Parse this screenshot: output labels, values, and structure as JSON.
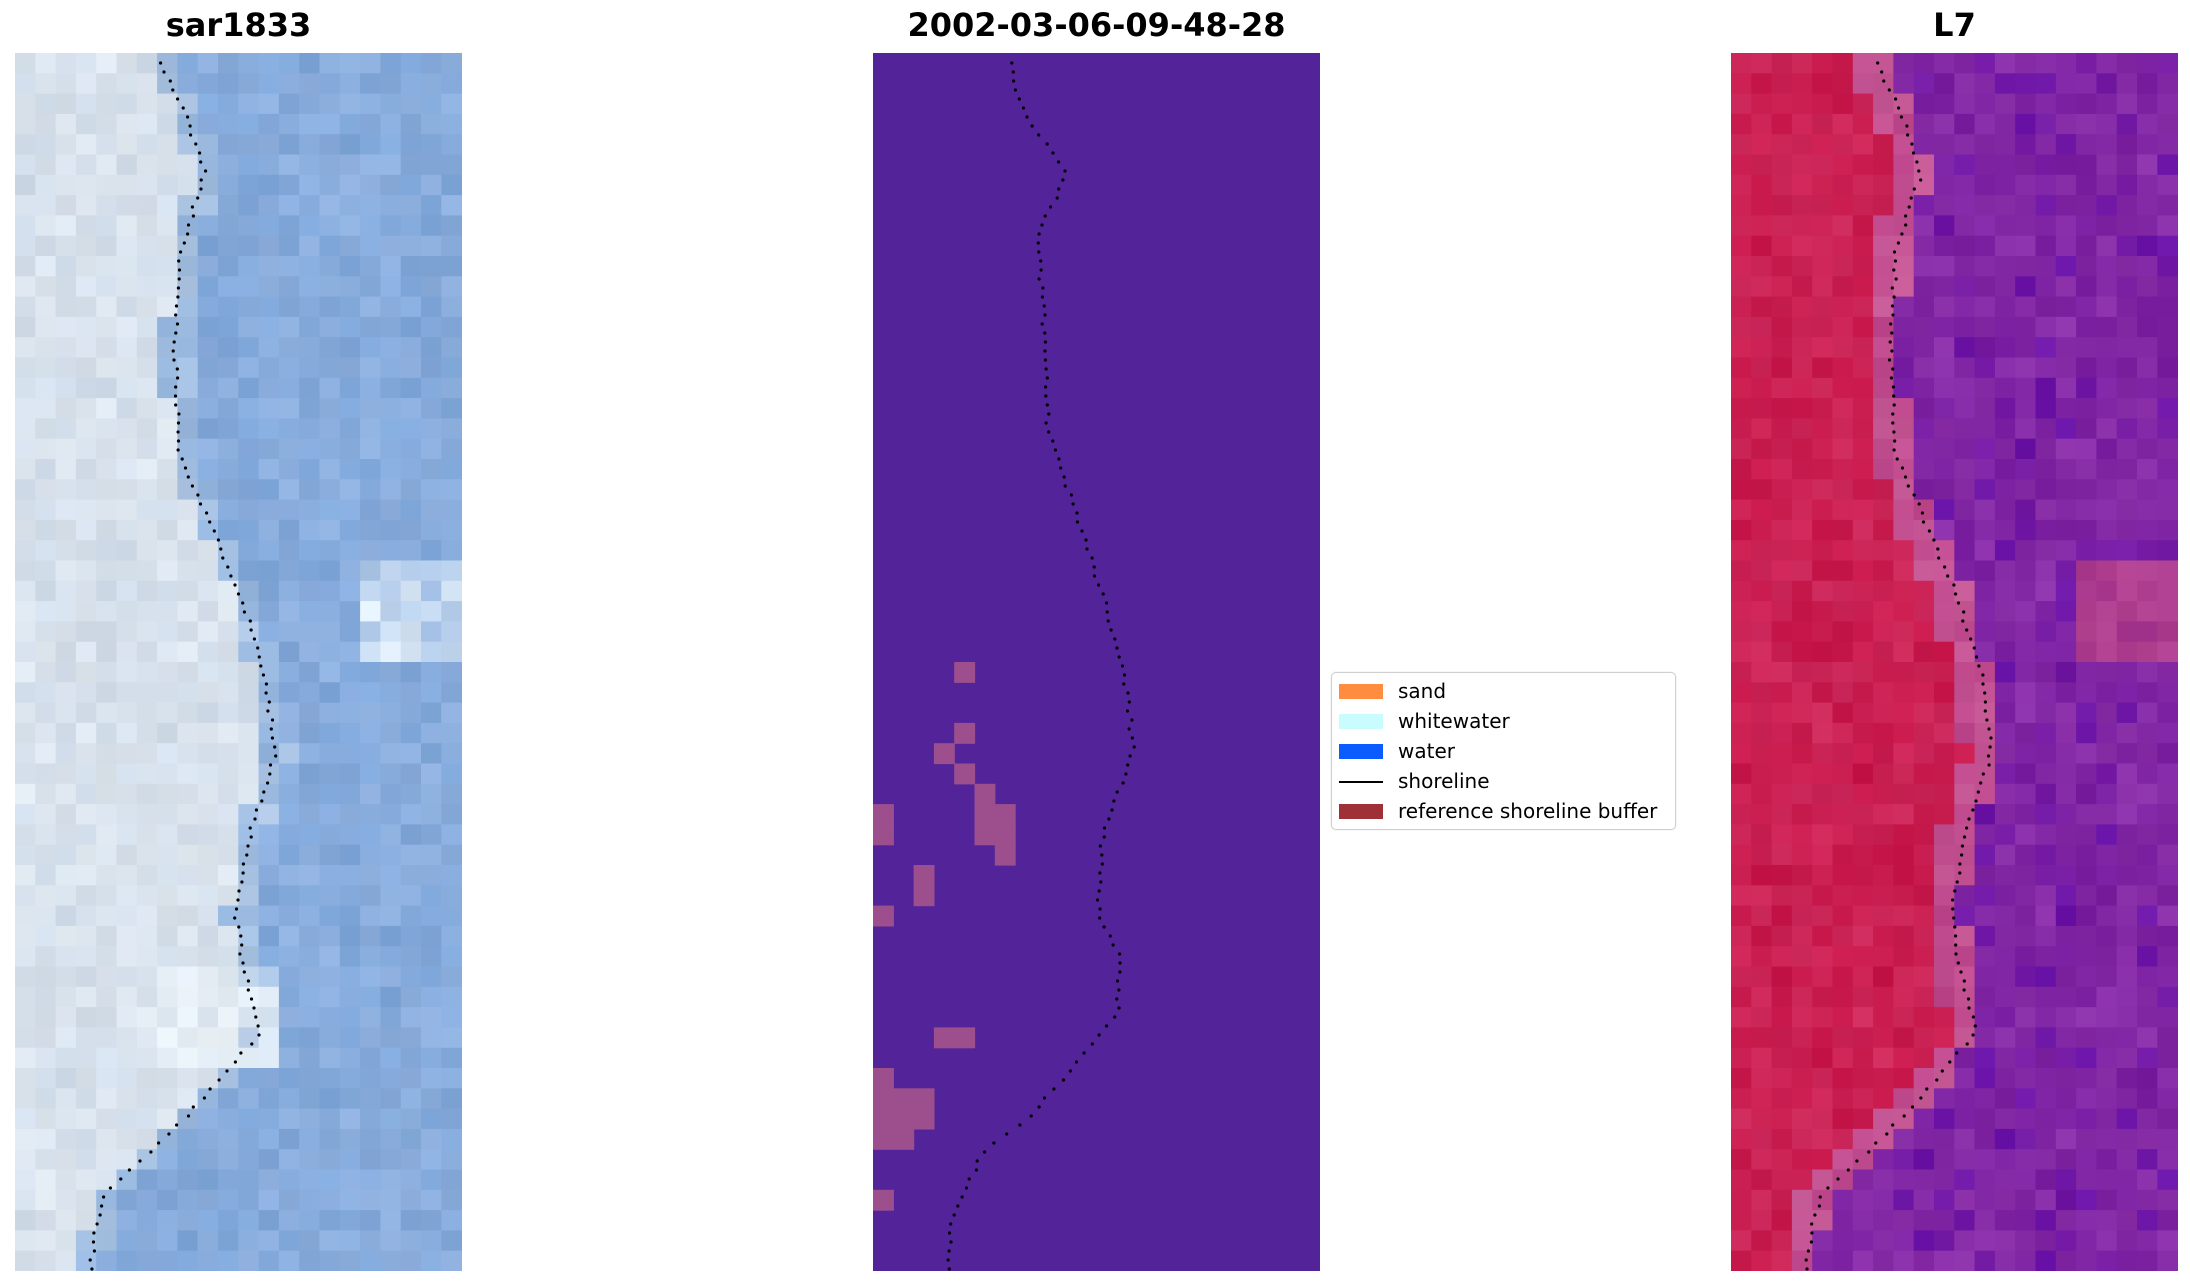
{
  "panels": {
    "rgb": {
      "title": "sar1833"
    },
    "classification": {
      "title": "2002-03-06-09-48-28"
    },
    "ndwi": {
      "title": "L7"
    }
  },
  "legend": {
    "items": [
      {
        "label": "sand",
        "kind": "patch",
        "color": "#ff8c3f"
      },
      {
        "label": "whitewater",
        "kind": "patch",
        "color": "#c8fcff"
      },
      {
        "label": "water",
        "kind": "patch",
        "color": "#0a5cff"
      },
      {
        "label": "shoreline",
        "kind": "line",
        "color": "#000000"
      },
      {
        "label": "reference shoreline buffer",
        "kind": "patch",
        "color": "#a03038"
      }
    ]
  },
  "colors": {
    "classification_background": "#53239a",
    "reference_buffer_overlay": "#9c4f8c",
    "shoreline": "#000000",
    "rgb_water": "#7fa7d9",
    "rgb_sand": "#dfe7ee",
    "ndwi_land": "#c8174a",
    "ndwi_water": "#7a1fa0"
  },
  "icons": {
    "rgb": "satellite-image-rgb",
    "classification": "classified-image",
    "ndwi": "ndwi-image"
  }
}
